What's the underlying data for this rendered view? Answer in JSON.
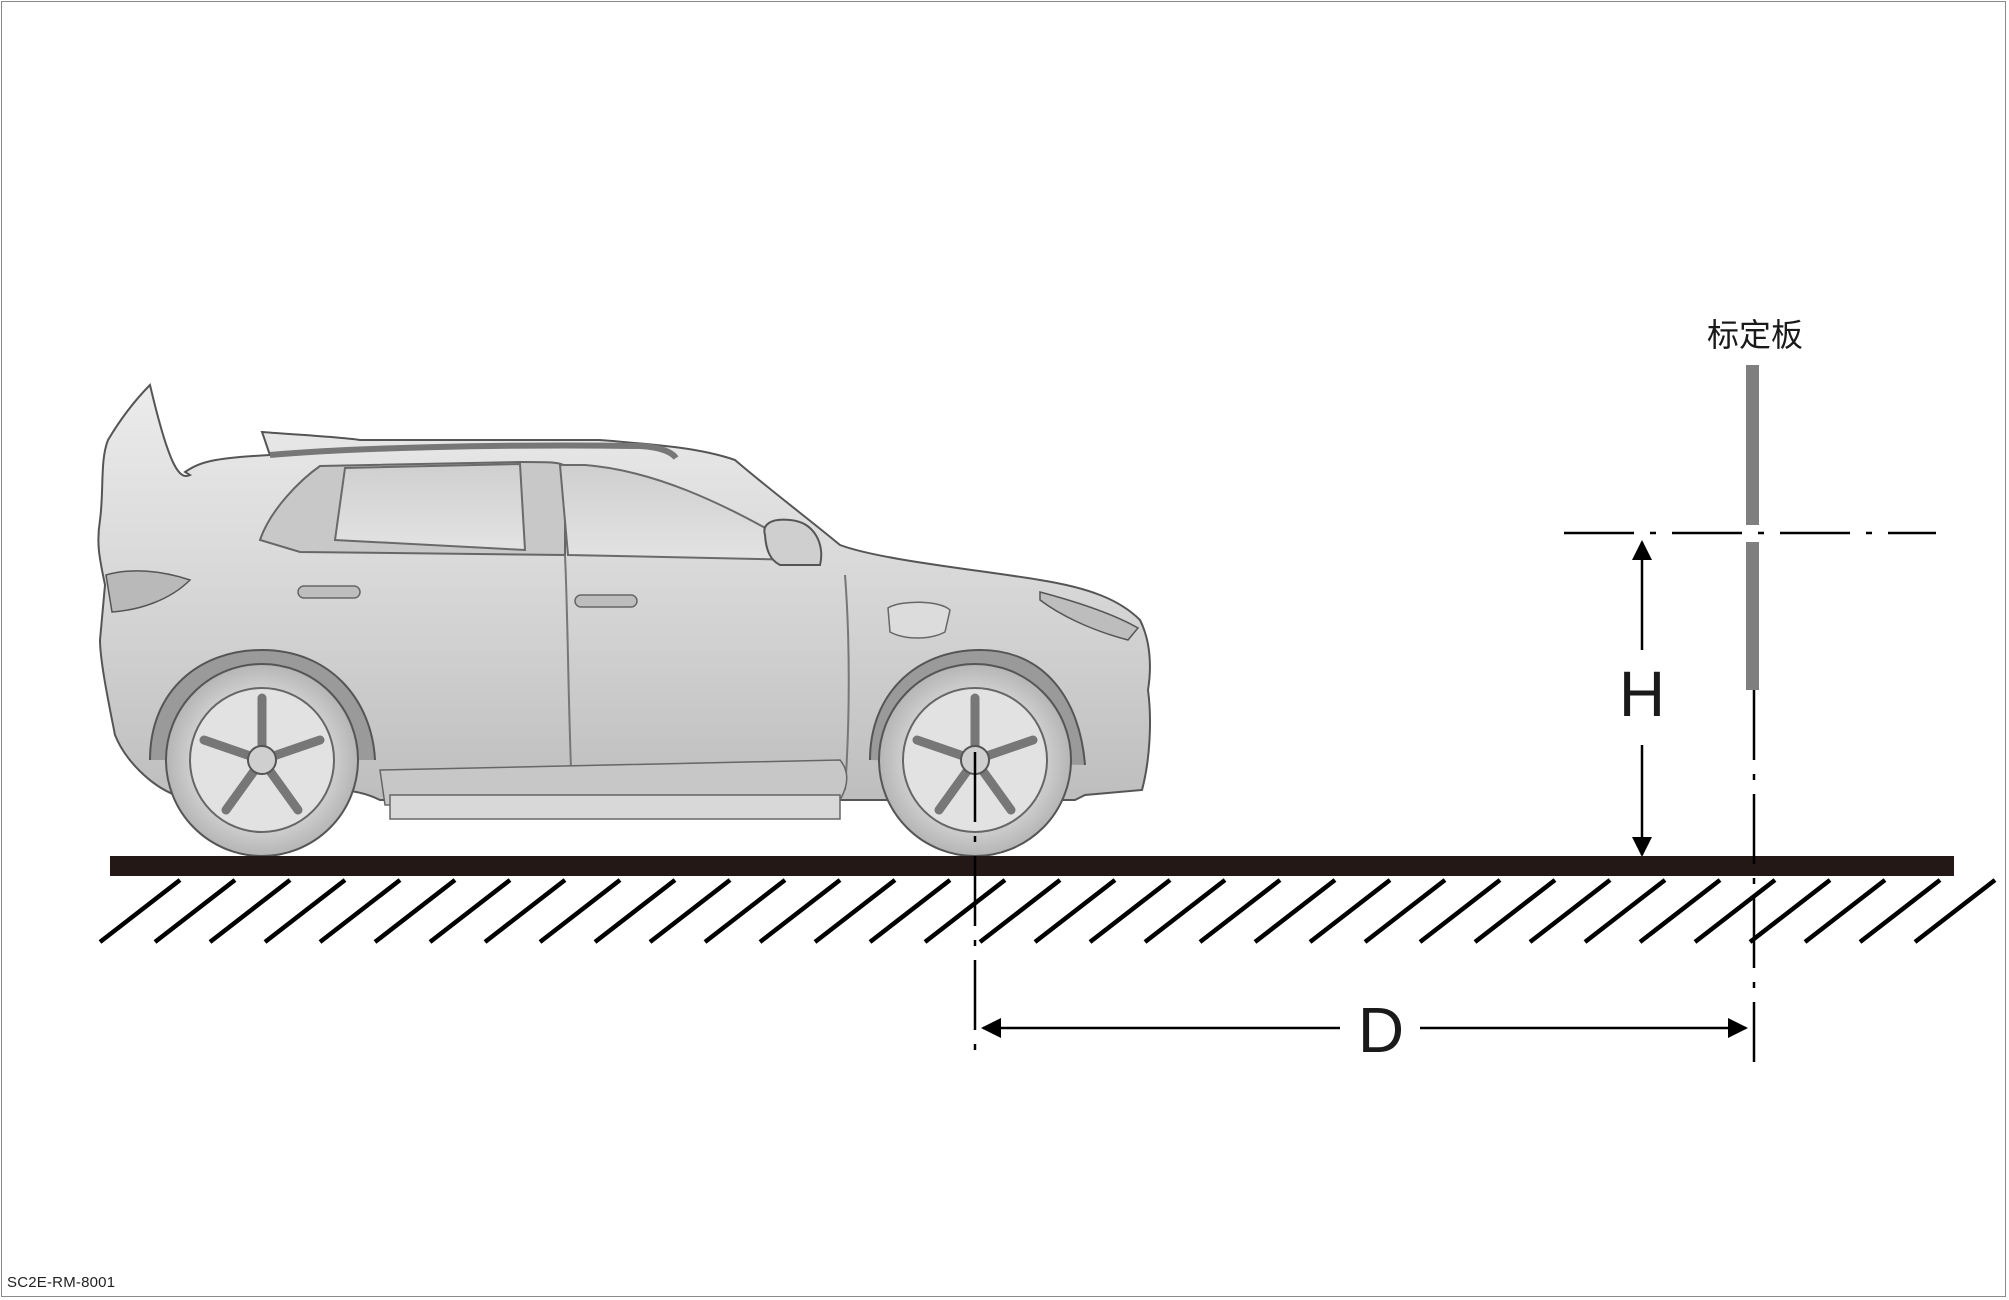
{
  "diagram": {
    "board_label": "标定板",
    "height_label": "H",
    "distance_label": "D",
    "figure_code": "SC2E-RM-8001"
  },
  "colors": {
    "ground": "#231815",
    "board": "#7f7f7f",
    "car_body": "#d9d9d9",
    "car_outline": "#555555",
    "lines": "#000000"
  }
}
